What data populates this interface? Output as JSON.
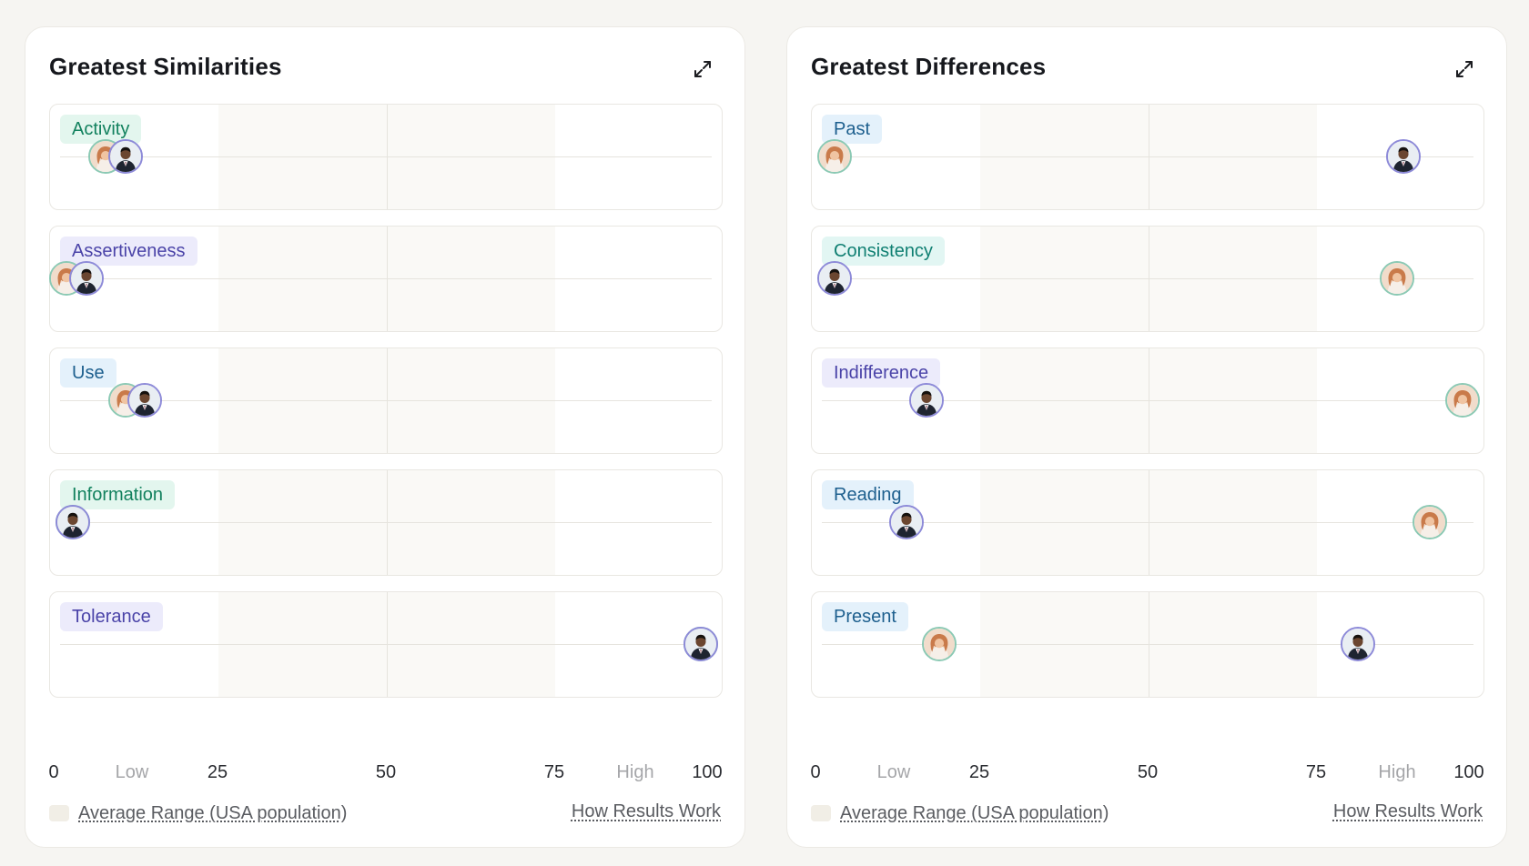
{
  "colors": {
    "page_background": "#f6f5f2",
    "avatar_ring_a": "#8bc9b4",
    "avatar_ring_b": "#8d8ad8",
    "average_band": "#faf9f6"
  },
  "axis_labels": [
    "0",
    "Low",
    "25",
    "50",
    "75",
    "High",
    "100"
  ],
  "legend_label": "Average Range (USA population)",
  "how_link_label": "How Results Work",
  "expand_icon": "expand-arrows-icon",
  "panels": [
    {
      "title": "Greatest Similarities",
      "rows": [
        {
          "label": "Activity",
          "tag_color": "green",
          "person_a": 7,
          "person_b": 10
        },
        {
          "label": "Assertiveness",
          "tag_color": "purple",
          "person_a": 1,
          "person_b": 4
        },
        {
          "label": "Use",
          "tag_color": "blue",
          "person_a": 10,
          "person_b": 13
        },
        {
          "label": "Information",
          "tag_color": "green",
          "person_a": 2,
          "person_b": 2
        },
        {
          "label": "Tolerance",
          "tag_color": "purple",
          "person_a": 98,
          "person_b": 98
        }
      ]
    },
    {
      "title": "Greatest Differences",
      "rows": [
        {
          "label": "Past",
          "tag_color": "blue",
          "person_a": 2,
          "person_b": 89
        },
        {
          "label": "Consistency",
          "tag_color": "teal",
          "person_a": 88,
          "person_b": 2
        },
        {
          "label": "Indifference",
          "tag_color": "purple",
          "person_a": 98,
          "person_b": 16
        },
        {
          "label": "Reading",
          "tag_color": "blue",
          "person_a": 93,
          "person_b": 13
        },
        {
          "label": "Present",
          "tag_color": "blue",
          "person_a": 18,
          "person_b": 82
        }
      ]
    }
  ]
}
